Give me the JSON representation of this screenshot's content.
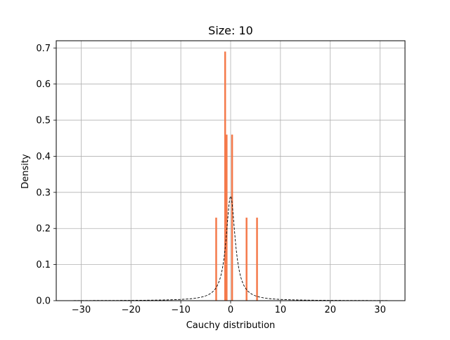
{
  "chart_data": {
    "type": "bar",
    "title": "Size: 10",
    "xlabel": "Cauchy distribution",
    "ylabel": "Density",
    "xlim": [
      -35,
      35
    ],
    "ylim": [
      0,
      0.72
    ],
    "x_ticks": [
      -30,
      -20,
      -10,
      0,
      10,
      20,
      30
    ],
    "x_tick_labels": [
      "−30",
      "−20",
      "−10",
      "0",
      "10",
      "20",
      "30"
    ],
    "y_ticks": [
      0.0,
      0.1,
      0.2,
      0.3,
      0.4,
      0.5,
      0.6,
      0.7
    ],
    "y_tick_labels": [
      "0.0",
      "0.1",
      "0.2",
      "0.3",
      "0.4",
      "0.5",
      "0.6",
      "0.7"
    ],
    "grid": true,
    "bar_color": "#f4794a",
    "bins": [
      {
        "x": -2.9,
        "density": 0.23
      },
      {
        "x": -1.1,
        "density": 0.69
      },
      {
        "x": -0.8,
        "density": 0.46
      },
      {
        "x": 0.3,
        "density": 0.46
      },
      {
        "x": 3.2,
        "density": 0.23
      },
      {
        "x": 5.3,
        "density": 0.23
      }
    ],
    "bin_width": 0.35,
    "pdf_curve": {
      "distribution": "cauchy",
      "location": 0,
      "scale": 1.1,
      "x_range": [
        -31.5,
        31.5
      ],
      "style": "dashed",
      "color": "#000000"
    }
  }
}
